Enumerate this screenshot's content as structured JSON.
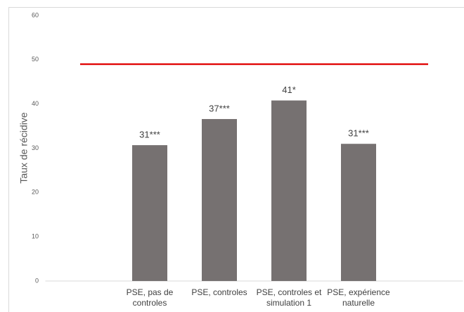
{
  "chart_data": {
    "type": "bar",
    "y_label": "Taux de récidive",
    "categories": [
      null,
      "PSE, pas de controles",
      "PSE, controles",
      "PSE, controles et simulation 1",
      "PSE, expérience naturelle",
      null
    ],
    "series": [
      {
        "type": "bar",
        "color": "#767171",
        "values": [
          null,
          30.7,
          36.6,
          40.8,
          31.0,
          null
        ],
        "value_labels": [
          null,
          "31***",
          "37***",
          "41*",
          "31***",
          null
        ]
      },
      {
        "type": "line",
        "color": "#e00000",
        "values": [
          49,
          49,
          49,
          49,
          49,
          49
        ]
      }
    ],
    "ylim": [
      0,
      60
    ],
    "yticks": [
      0,
      10,
      20,
      30,
      40,
      50,
      60
    ],
    "grid": false
  }
}
